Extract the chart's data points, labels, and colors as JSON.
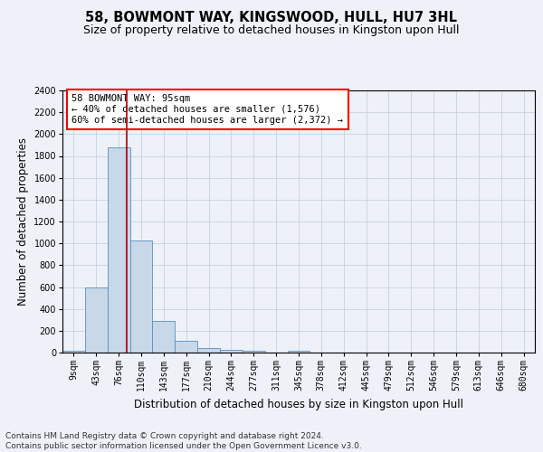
{
  "title": "58, BOWMONT WAY, KINGSWOOD, HULL, HU7 3HL",
  "subtitle": "Size of property relative to detached houses in Kingston upon Hull",
  "xlabel": "Distribution of detached houses by size in Kingston upon Hull",
  "ylabel": "Number of detached properties",
  "bin_labels": [
    "9sqm",
    "43sqm",
    "76sqm",
    "110sqm",
    "143sqm",
    "177sqm",
    "210sqm",
    "244sqm",
    "277sqm",
    "311sqm",
    "345sqm",
    "378sqm",
    "412sqm",
    "445sqm",
    "479sqm",
    "512sqm",
    "546sqm",
    "579sqm",
    "613sqm",
    "646sqm",
    "680sqm"
  ],
  "bin_values": [
    20,
    600,
    1880,
    1030,
    290,
    110,
    45,
    25,
    20,
    0,
    20,
    0,
    0,
    0,
    0,
    0,
    0,
    0,
    0,
    0,
    0
  ],
  "bar_color": "#c8d8e8",
  "bar_edge_color": "#5590c0",
  "grid_color": "#c8d0e0",
  "background_color": "#eef2f8",
  "annotation_text": "58 BOWMONT WAY: 95sqm\n← 40% of detached houses are smaller (1,576)\n60% of semi-detached houses are larger (2,372) →",
  "annotation_box_color": "white",
  "annotation_box_edge_color": "red",
  "property_line_x": 2.35,
  "property_line_color": "#aa0000",
  "ylim": [
    0,
    2400
  ],
  "yticks": [
    0,
    200,
    400,
    600,
    800,
    1000,
    1200,
    1400,
    1600,
    1800,
    2000,
    2200,
    2400
  ],
  "footnote": "Contains HM Land Registry data © Crown copyright and database right 2024.\nContains public sector information licensed under the Open Government Licence v3.0.",
  "title_fontsize": 10.5,
  "subtitle_fontsize": 9,
  "xlabel_fontsize": 8.5,
  "ylabel_fontsize": 8.5,
  "tick_fontsize": 7,
  "footnote_fontsize": 6.5,
  "annot_fontsize": 7.5
}
